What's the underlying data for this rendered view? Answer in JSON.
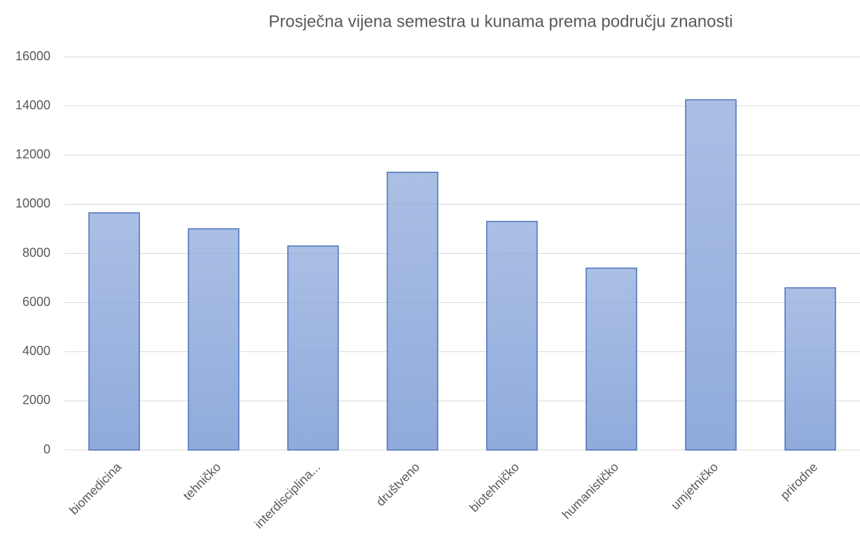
{
  "chart_data": {
    "type": "bar",
    "title": "Prosječna vijena semestra u kunama prema području znanosti",
    "categories": [
      "biomedicina",
      "tehničko",
      "interdisciplina...",
      "društveno",
      "biotehničko",
      "humanističko",
      "umjetničko",
      "prirodne"
    ],
    "values": [
      9650,
      9000,
      8300,
      11300,
      9300,
      7400,
      14250,
      6600
    ],
    "color": "#8faadc",
    "edge_color": "#4a72b8",
    "ylim": [
      0,
      16000
    ],
    "yticks": [
      0,
      2000,
      4000,
      6000,
      8000,
      10000,
      12000,
      14000,
      16000
    ],
    "grid": true
  }
}
